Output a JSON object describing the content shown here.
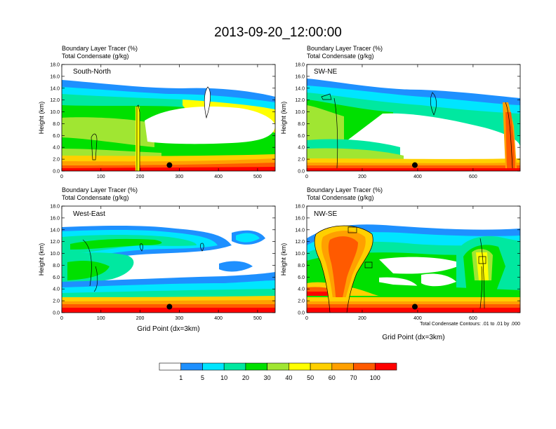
{
  "title": "2013-09-20_12:00:00",
  "footnote": "Total Condensate Contours: .01 to .01 by .000",
  "colorbar": {
    "labels": [
      "1",
      "5",
      "10",
      "20",
      "30",
      "40",
      "50",
      "60",
      "70",
      "100"
    ],
    "colors": [
      "#ffffff",
      "#1e90ff",
      "#00e5ff",
      "#00e8a0",
      "#00e000",
      "#a0e632",
      "#ffff00",
      "#ffd000",
      "#ffa000",
      "#ff5a00",
      "#ff0000"
    ]
  },
  "chart_data": [
    {
      "type": "contour",
      "id": "p1",
      "label": "South-North",
      "header": [
        "Boundary Layer Tracer   (%)",
        "Total Condensate   (g/kg)"
      ],
      "ylabel": "Height (km)",
      "xlabel": "",
      "xlim": [
        0,
        545
      ],
      "ylim": [
        0,
        18
      ],
      "xticks": [
        "0",
        "100",
        "200",
        "300",
        "400",
        "500"
      ],
      "yticks": [
        "0.0",
        "2.0",
        "4.0",
        "6.0",
        "8.0",
        "10.0",
        "12.0",
        "14.0",
        "16.0",
        "18.0"
      ],
      "marker": {
        "x": 275,
        "y": 1.0
      }
    },
    {
      "type": "contour",
      "id": "p2",
      "label": "SW-NE",
      "header": [
        "Boundary Layer Tracer   (%)",
        "Total Condensate   (g/kg)"
      ],
      "ylabel": "Height (km)",
      "xlabel": "",
      "xlim": [
        0,
        770
      ],
      "ylim": [
        0,
        18
      ],
      "xticks": [
        "0",
        "200",
        "400",
        "600"
      ],
      "yticks": [
        "0.0",
        "2.0",
        "4.0",
        "6.0",
        "8.0",
        "10.0",
        "12.0",
        "14.0",
        "16.0",
        "18.0"
      ],
      "marker": {
        "x": 390,
        "y": 1.0
      }
    },
    {
      "type": "contour",
      "id": "p3",
      "label": "West-East",
      "header": [
        "Boundary Layer Tracer   (%)",
        "Total Condensate   (g/kg)"
      ],
      "ylabel": "Height (km)",
      "xlabel": "Grid Point (dx=3km)",
      "xlim": [
        0,
        545
      ],
      "ylim": [
        0,
        18
      ],
      "xticks": [
        "0",
        "100",
        "200",
        "300",
        "400",
        "500"
      ],
      "yticks": [
        "0.0",
        "2.0",
        "4.0",
        "6.0",
        "8.0",
        "10.0",
        "12.0",
        "14.0",
        "16.0",
        "18.0"
      ],
      "marker": {
        "x": 275,
        "y": 1.0
      }
    },
    {
      "type": "contour",
      "id": "p4",
      "label": "NW-SE",
      "header": [
        "Boundary Layer Tracer   (%)",
        "Total Condensate   (g/kg)"
      ],
      "ylabel": "Height (km)",
      "xlabel": "Grid Point (dx=3km)",
      "xlim": [
        0,
        770
      ],
      "ylim": [
        0,
        18
      ],
      "xticks": [
        "0",
        "200",
        "400",
        "600"
      ],
      "yticks": [
        "0.0",
        "2.0",
        "4.0",
        "6.0",
        "8.0",
        "10.0",
        "12.0",
        "14.0",
        "16.0",
        "18.0"
      ],
      "marker": {
        "x": 390,
        "y": 1.0
      }
    }
  ]
}
